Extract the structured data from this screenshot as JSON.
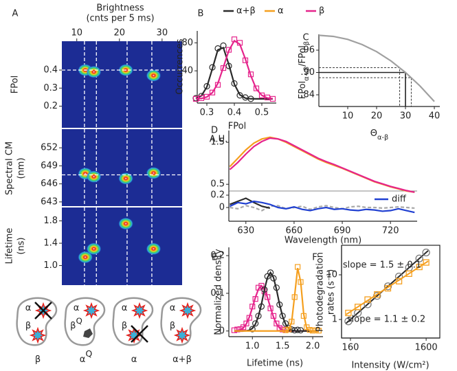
{
  "chart_data": [
    {
      "type": "density",
      "panel": "A",
      "title": "Brightness",
      "subtitle": "(cnts per 5 ms)",
      "ylabel": "FPol",
      "xlim": [
        6.5,
        34.7
      ],
      "ylim": [
        0.08,
        0.56
      ],
      "xticks": [
        10,
        20,
        30
      ],
      "yticks": [
        0.4,
        0.3,
        0.2
      ],
      "x": [
        12,
        14,
        21.5,
        28
      ],
      "values": [
        0.4,
        0.39,
        0.4,
        0.37
      ],
      "vlines": [
        11.8,
        14.6,
        21.8,
        27.6
      ],
      "hlines": [
        0.4
      ]
    },
    {
      "type": "density",
      "ylabel": "Spectral CM",
      "ylabel_sub": "(nm)",
      "xlim": [
        6.5,
        34.7
      ],
      "ylim": [
        642.3,
        655.1
      ],
      "yticks": [
        652,
        649,
        646,
        643
      ],
      "x": [
        12,
        14,
        21.5,
        28
      ],
      "values": [
        647.7,
        647.2,
        646.9,
        647.8
      ],
      "vlines": [
        11.8,
        14.6,
        21.8,
        27.6
      ],
      "hlines": [
        647.5
      ]
    },
    {
      "type": "density",
      "ylabel": "Lifetime",
      "ylabel_sub": "(ns)",
      "xlim": [
        6.5,
        34.7
      ],
      "ylim": [
        0.65,
        2.04
      ],
      "yticks": [
        1.8,
        1.4,
        {
          "value": 1,
          "label": "1.0"
        }
      ],
      "x": [
        12,
        14,
        21.5,
        28
      ],
      "values": [
        1.15,
        1.3,
        1.75,
        1.3
      ],
      "vlines": [
        11.8,
        14.6,
        21.8,
        27.6
      ]
    },
    {
      "type": "line",
      "panel": "B",
      "xlabel": "FPol",
      "ylabel": "Occurrences",
      "xlim": [
        0.265,
        0.5525
      ],
      "ylim": [
        -6,
        97
      ],
      "xticks": [
        0.3,
        0.4,
        0.5
      ],
      "yticks": [
        40,
        80
      ],
      "legend": [
        {
          "name": "α+β",
          "color": "#2a2a2a"
        },
        {
          "name": "α",
          "color": "#f59f1e"
        },
        {
          "name": "β",
          "color": "#e5238b"
        }
      ],
      "x": [
        0.26,
        0.28,
        0.3,
        0.32,
        0.34,
        0.36,
        0.38,
        0.4,
        0.42,
        0.44,
        0.46,
        0.48,
        0.5,
        0.52,
        0.54
      ],
      "series": [
        {
          "color": "#2a2a2a",
          "marker": "circle",
          "values": [
            0.7,
            4.3,
            17,
            43,
            70,
            73,
            49,
            21,
            5.8,
            1.0,
            0.1,
            0,
            0,
            0,
            0
          ],
          "observed": [
            1,
            4,
            18,
            45,
            72,
            76,
            47,
            22,
            5,
            2,
            0,
            null,
            null,
            null,
            null
          ]
        },
        {
          "color": "#e5238b",
          "marker": "square",
          "values": [
            0.1,
            0.6,
            2.7,
            8.8,
            22,
            45,
            69,
            83,
            78,
            57,
            33,
            14,
            5,
            1.3,
            0.3
          ],
          "observed": [
            0,
            1,
            3,
            9,
            20,
            44,
            70,
            85,
            80,
            55,
            35,
            15,
            5,
            2,
            0
          ]
        }
      ]
    },
    {
      "type": "line",
      "panel": "C",
      "ylabel": [
        "FPol",
        "α+β",
        "/FPol",
        "β"
      ],
      "xlabel": [
        "Θ",
        "α-β"
      ],
      "xlim": [
        0,
        41.9
      ],
      "ylim": [
        0.8086,
        1.0025
      ],
      "xticks": [
        10,
        20,
        30,
        40
      ],
      "yticks": [
        {
          "value": 0.96,
          "label": ".96"
        },
        {
          "value": 0.9,
          "label": ".90"
        },
        {
          "value": 0.84,
          "label": ".84"
        }
      ],
      "x": [
        0,
        5,
        10,
        15,
        20,
        25,
        30,
        35,
        40
      ],
      "series": [
        {
          "color": "#a0a0a0",
          "values": [
            1.0,
            0.997,
            0.989,
            0.975,
            0.956,
            0.931,
            0.9,
            0.864,
            0.822
          ]
        }
      ],
      "refs": [
        {
          "x": 30,
          "y": 0.9,
          "style": "solid"
        },
        {
          "x": 28,
          "y": 0.913,
          "style": "dashed"
        },
        {
          "x": 32,
          "y": 0.886,
          "style": "dashed"
        }
      ]
    },
    {
      "type": "line",
      "panel": "D",
      "ylabel": "A.U.",
      "xlim": [
        619.4,
        736.6
      ],
      "ylim": [
        0.34,
        1.78
      ],
      "yticks": [
        1.5,
        0.5
      ],
      "x": [
        620,
        625,
        630,
        635,
        640,
        645,
        650,
        655,
        660,
        665,
        670,
        675,
        680,
        685,
        690,
        695,
        700,
        705,
        710,
        715,
        720,
        725,
        730,
        735
      ],
      "series": [
        {
          "color": "#f59f1e",
          "values": [
            0.92,
            1.12,
            1.32,
            1.48,
            1.58,
            1.62,
            1.58,
            1.5,
            1.4,
            1.3,
            1.2,
            1.1,
            1.02,
            0.95,
            0.88,
            0.8,
            0.72,
            0.64,
            0.56,
            0.5,
            0.44,
            0.39,
            0.34,
            0.31
          ]
        },
        {
          "color": "#e5238b",
          "values": [
            0.85,
            1.02,
            1.22,
            1.4,
            1.52,
            1.6,
            1.58,
            1.52,
            1.42,
            1.32,
            1.22,
            1.12,
            1.04,
            0.97,
            0.89,
            0.81,
            0.73,
            0.65,
            0.57,
            0.51,
            0.45,
            0.4,
            0.35,
            0.31
          ]
        }
      ]
    },
    {
      "type": "line",
      "xlabel": "Wavelength (nm)",
      "xlim": [
        619.4,
        736.6
      ],
      "ylim": [
        -0.222,
        0.267
      ],
      "xticks": [
        630,
        660,
        690,
        720
      ],
      "yticks": [
        0.2,
        0
      ],
      "x": [
        620,
        625,
        630,
        635,
        640,
        645,
        650,
        655,
        660,
        665,
        670,
        675,
        680,
        685,
        690,
        695,
        700,
        705,
        710,
        715,
        720,
        725,
        730,
        735
      ],
      "series": [
        {
          "color": "#a8a8a8",
          "dash": true,
          "values": [
            0.0,
            -0.02,
            0.03,
            0.0,
            -0.05,
            0.02,
            0.03,
            -0.02,
            0.0,
            0.02,
            -0.03,
            0.01,
            0.03,
            0.0,
            -0.02,
            0.01,
            0.02,
            0.0,
            0.0,
            -0.01,
            0.0,
            0.01,
            0.0,
            -0.01
          ]
        },
        {
          "color": "#2a2a2a",
          "values": [
            0.05,
            0.1,
            0.15,
            0.08,
            0.02,
            -0.01,
            null,
            null,
            null,
            null,
            null,
            null,
            null,
            null,
            null,
            null,
            null,
            null,
            null,
            null,
            null,
            null,
            null,
            null
          ]
        },
        {
          "name": "diff",
          "color": "#1f3fd1",
          "values": [
            0.02,
            0.08,
            0.06,
            0.1,
            0.08,
            0.05,
            0.0,
            -0.02,
            0.01,
            -0.03,
            -0.05,
            -0.02,
            0.0,
            -0.03,
            -0.02,
            -0.04,
            -0.05,
            -0.03,
            -0.04,
            -0.06,
            -0.05,
            -0.02,
            -0.05,
            -0.08
          ]
        }
      ]
    },
    {
      "type": "line",
      "panel": "E",
      "xlabel": "Lifetime (ns)",
      "ylabel": "Normalized density",
      "xlim": [
        0.61,
        2.17
      ],
      "ylim": [
        -0.015,
        0.222
      ],
      "xticks": [
        {
          "value": 1,
          "label": "1.0"
        },
        1.5,
        {
          "value": 2,
          "label": "2.0"
        }
      ],
      "yticks": [
        0.2,
        0.1,
        0
      ],
      "x": [
        0.7,
        0.75,
        0.8,
        0.85,
        0.9,
        0.95,
        1,
        1.05,
        1.1,
        1.15,
        1.2,
        1.25,
        1.3,
        1.35,
        1.4,
        1.45,
        1.5,
        1.55,
        1.6,
        1.65,
        1.7,
        1.75,
        1.8,
        1.85,
        1.9,
        1.95,
        2,
        2.05,
        2.1
      ],
      "series": [
        {
          "color": "#e5238b",
          "marker": "square",
          "values": [
            0.0003,
            0.001,
            0.003,
            0.008,
            0.019,
            0.037,
            0.062,
            0.089,
            0.111,
            0.12,
            0.111,
            0.089,
            0.062,
            0.037,
            0.019,
            0.008,
            0.003,
            0.001,
            0.0003,
            0,
            0,
            0,
            0,
            0,
            0,
            0,
            0,
            0,
            0
          ],
          "observed": [
            0.002,
            0.004,
            0.005,
            0.01,
            0.02,
            0.035,
            0.065,
            0.085,
            0.115,
            0.12,
            0.105,
            0.09,
            0.06,
            0.04,
            0.02,
            0.008,
            0.004,
            null,
            null,
            null,
            null,
            null,
            null,
            null,
            null,
            null,
            null,
            null,
            null
          ]
        },
        {
          "color": "#2a2a2a",
          "marker": "circle",
          "values": [
            0,
            0,
            0,
            0.0001,
            0.0006,
            0.002,
            0.007,
            0.018,
            0.039,
            0.071,
            0.11,
            0.142,
            0.155,
            0.142,
            0.11,
            0.071,
            0.039,
            0.018,
            0.007,
            0.002,
            0.0006,
            0.0001,
            0,
            0,
            0,
            0,
            0,
            0,
            0
          ],
          "observed": [
            null,
            null,
            null,
            null,
            null,
            null,
            0.005,
            0.02,
            0.04,
            0.065,
            0.11,
            0.145,
            0.155,
            0.14,
            0.115,
            0.07,
            0.04,
            0.02,
            0.008,
            0.004,
            0.002,
            0.003,
            0.002,
            null,
            null,
            null,
            null,
            null,
            null
          ]
        },
        {
          "color": "#f59f1e",
          "marker": "square",
          "values": [
            0,
            0,
            0,
            0,
            0,
            0,
            0,
            0,
            0,
            0,
            0,
            0,
            0,
            0,
            0,
            0,
            0,
            0.0001,
            0.0025,
            0.023,
            0.094,
            0.167,
            0.131,
            0.045,
            0.007,
            0.0004,
            0,
            0,
            0
          ],
          "observed": [
            null,
            null,
            null,
            null,
            null,
            null,
            null,
            null,
            null,
            null,
            null,
            null,
            null,
            null,
            null,
            null,
            null,
            0.002,
            0.004,
            0.025,
            0.09,
            0.17,
            0.13,
            0.04,
            0.01,
            0.003,
            0.001,
            0.002,
            0.001
          ]
        }
      ]
    },
    {
      "type": "scatter",
      "panel": "F",
      "log_x": true,
      "log_y": true,
      "xlabel": "Intensity (W/cm²)",
      "ylabel": [
        "Photodegradation",
        "rates (s⁻¹)"
      ],
      "xlim": [
        122,
        2425
      ],
      "ylim": [
        0.385,
        45.8
      ],
      "xticks": [
        160,
        1600
      ],
      "yticks": [
        1,
        10
      ],
      "series": [
        {
          "color": "#7a7a7a",
          "fit_color": "#2a2a2a",
          "marker": "circle",
          "x": [
            150,
            200,
            270,
            360,
            500,
            700,
            950,
            1300,
            1600
          ],
          "values": [
            0.91,
            1.4,
            2.19,
            3.38,
            5.52,
            9.15,
            14.5,
            23.2,
            31.6
          ],
          "fit_x": [
            140,
            1700
          ],
          "fit_values": [
            0.82,
            34.6
          ]
        },
        {
          "color": "#f59f1e",
          "fit_color": "#f59f1e",
          "marker": "square",
          "x": [
            150,
            200,
            270,
            360,
            500,
            700,
            950,
            1300,
            1600
          ],
          "values": [
            1.4,
            1.91,
            2.79,
            3.64,
            5.0,
            7.2,
            10.6,
            15.0,
            18.9
          ],
          "fit_x": [
            140,
            1700
          ],
          "fit_values": [
            1.29,
            20.2
          ]
        }
      ],
      "annotations": [
        {
          "text": "slope = 1.5 ± 0.1",
          "color": "#2a2a2a"
        },
        {
          "text": "slope = 1.1 ± 0.2",
          "color": "#f59f1e"
        }
      ]
    }
  ],
  "cartoons": [
    {
      "caption": [
        "β"
      ],
      "labels": [
        [
          "α"
        ],
        [
          "β"
        ]
      ]
    },
    {
      "caption": [
        "α",
        "Q"
      ],
      "labels": [
        [
          "α"
        ],
        [
          "β",
          "Q"
        ]
      ]
    },
    {
      "caption": [
        "α"
      ],
      "labels": [
        [
          "α"
        ],
        [
          "β"
        ]
      ]
    },
    {
      "caption": [
        "α+β"
      ],
      "labels": [
        [
          "α"
        ],
        [
          "β"
        ]
      ]
    }
  ]
}
